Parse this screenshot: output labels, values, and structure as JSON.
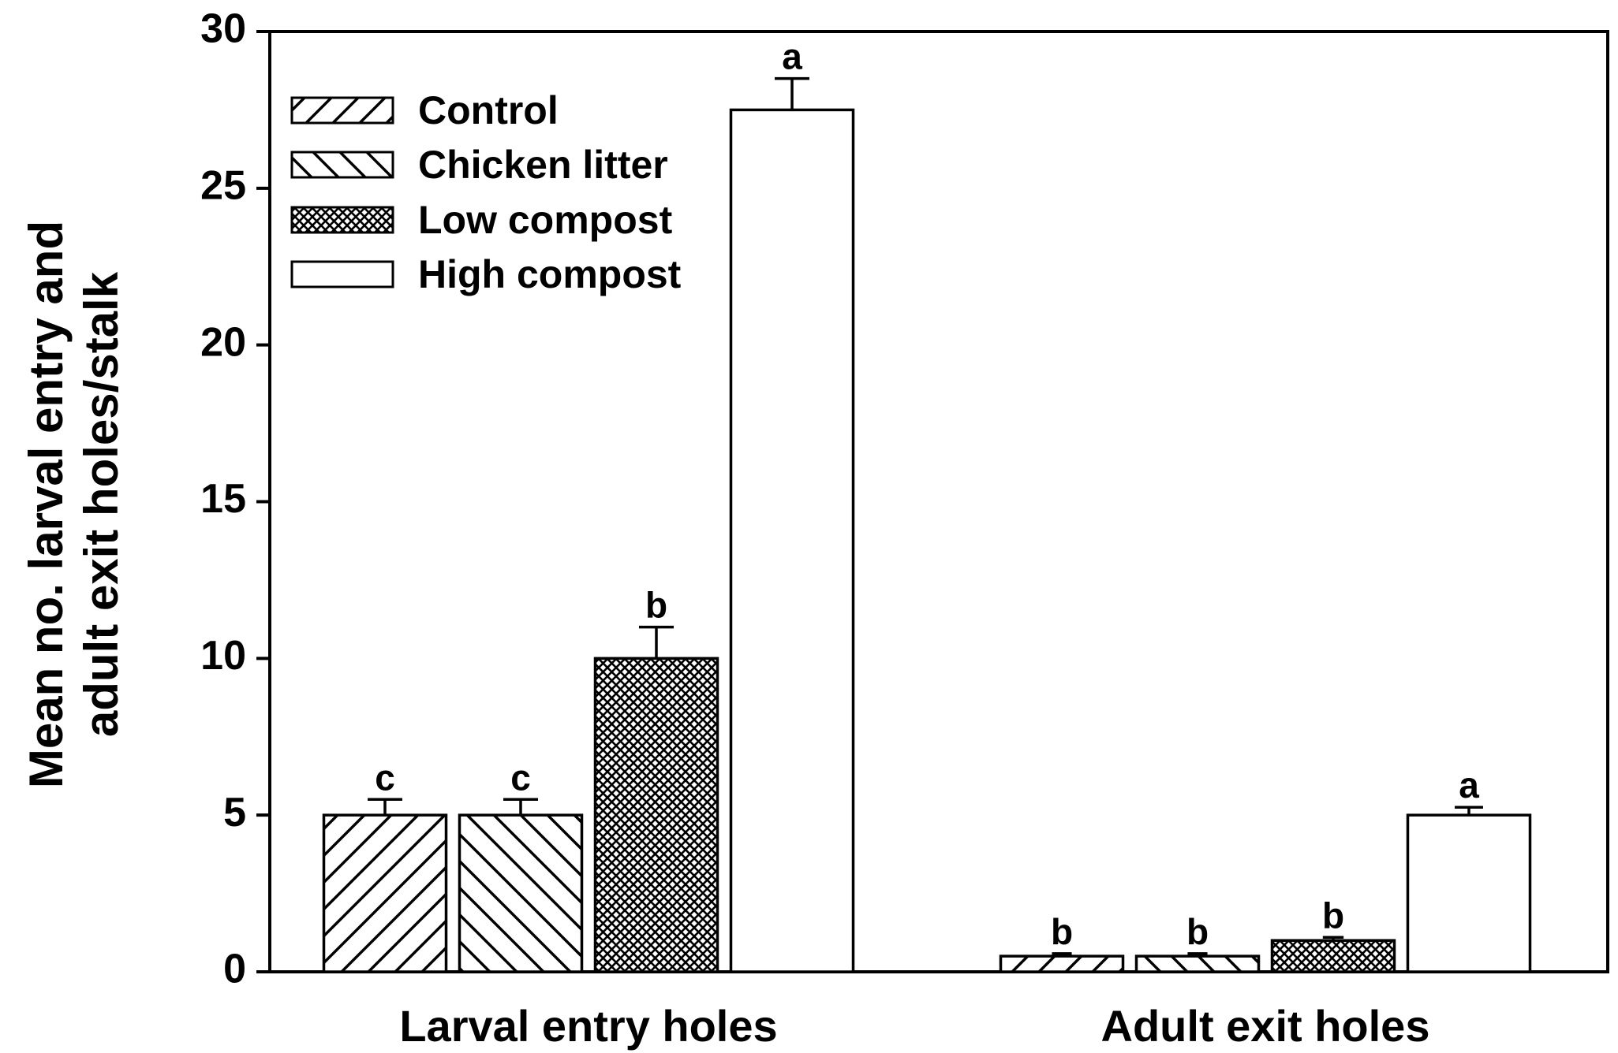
{
  "chart_data": {
    "type": "bar",
    "title": "",
    "xlabel": "",
    "ylabel_lines": [
      "Mean no. larval entry and",
      "adult exit holes/stalk"
    ],
    "categories": [
      "Larval entry holes",
      "Adult exit holes"
    ],
    "ylim": [
      0,
      30
    ],
    "yticks": [
      0,
      5,
      10,
      15,
      20,
      25,
      30
    ],
    "legend_position": "top-left",
    "series": [
      {
        "name": "Control",
        "pattern": "hatch-forward",
        "values": [
          5.0,
          0.5
        ],
        "errors": [
          0.5,
          0.08
        ],
        "letters": [
          "c",
          "b"
        ]
      },
      {
        "name": "Chicken litter",
        "pattern": "hatch-backward",
        "values": [
          5.0,
          0.5
        ],
        "errors": [
          0.5,
          0.08
        ],
        "letters": [
          "c",
          "b"
        ]
      },
      {
        "name": "Low compost",
        "pattern": "crosshatch",
        "values": [
          10.0,
          1.0
        ],
        "errors": [
          1.0,
          0.1
        ],
        "letters": [
          "b",
          "b"
        ]
      },
      {
        "name": "High compost",
        "pattern": "solid-white",
        "values": [
          27.5,
          5.0
        ],
        "errors": [
          1.0,
          0.25
        ],
        "letters": [
          "a",
          "a"
        ]
      }
    ],
    "colors": {
      "bar_fill": "#ffffff",
      "stroke": "#000000"
    }
  }
}
